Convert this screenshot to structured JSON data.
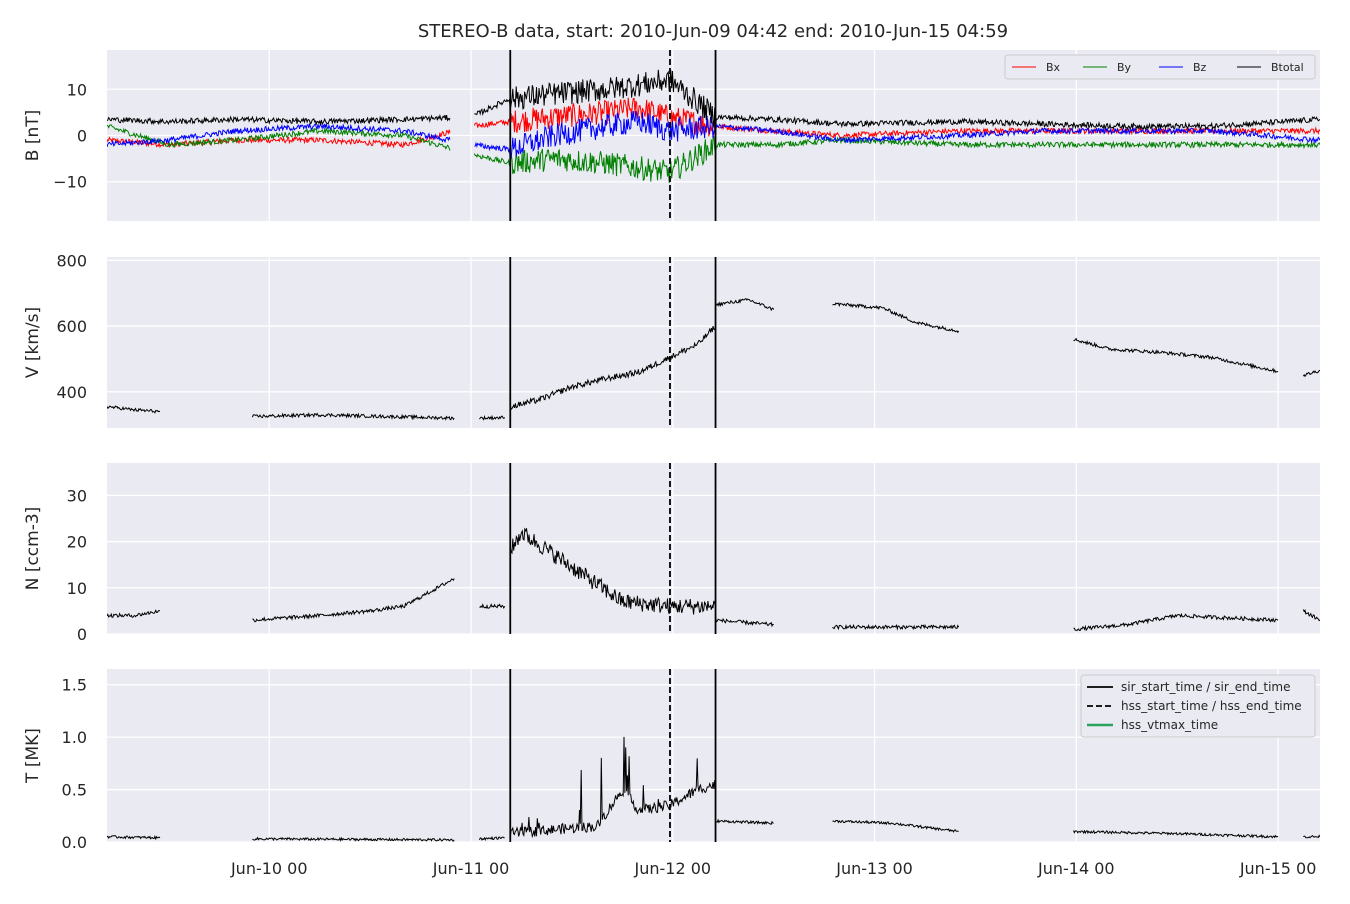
{
  "figure": {
    "title": "STEREO-B data, start: 2010-Jun-09 04:42  end: 2010-Jun-15 04:59",
    "background": "#eaeaf2",
    "grid_color": "#ffffff",
    "x_tick_labels": [
      "Jun-10 00",
      "Jun-11 00",
      "Jun-12 00",
      "Jun-13 00",
      "Jun-14 00",
      "Jun-15 00"
    ]
  },
  "events": {
    "sir_start_time": "2010-06-11 04:40",
    "hss_start_time": "2010-06-11 23:40",
    "sir_end_time": "2010-06-12 05:05"
  },
  "chart_data": [
    {
      "type": "line",
      "panel": "B",
      "ylabel": "B [nT]",
      "ylim": [
        -18.5,
        18.5
      ],
      "yticks": [
        -10,
        0,
        10
      ],
      "ytick_labels": [
        "−10",
        "0",
        "10"
      ],
      "xlim": [
        "2010-06-09 04:42",
        "2010-06-15 04:59"
      ],
      "grid": true,
      "legend_position": "top-right",
      "x": [
        "2010-06-09 04:42",
        "2010-06-09 12:00",
        "2010-06-09 20:00",
        "2010-06-10 06:00",
        "2010-06-10 16:00",
        "2010-06-11 00:00",
        "2010-06-11 04:40",
        "2010-06-11 10:00",
        "2010-06-11 16:00",
        "2010-06-11 20:00",
        "2010-06-11 23:40",
        "2010-06-12 05:05",
        "2010-06-12 12:00",
        "2010-06-12 20:00",
        "2010-06-13 10:00",
        "2010-06-13 20:00",
        "2010-06-14 06:00",
        "2010-06-14 16:00",
        "2010-06-15 04:59"
      ],
      "series": [
        {
          "name": "Bx",
          "color": "#ff0000",
          "values": [
            -1,
            -2,
            -1,
            -1,
            -2,
            2,
            3,
            4,
            5,
            6,
            4,
            2,
            1,
            0,
            1,
            1,
            1,
            1,
            1
          ]
        },
        {
          "name": "By",
          "color": "#008000",
          "values": [
            2,
            -2,
            -1,
            1,
            0,
            -4,
            -6,
            -5,
            -6,
            -7,
            -8,
            -2,
            -2,
            -1,
            -2,
            -2,
            -2,
            -2,
            -2
          ]
        },
        {
          "name": "Bz",
          "color": "#0000ff",
          "values": [
            -2,
            -1,
            1,
            2,
            1,
            -2,
            -3,
            0,
            2,
            3,
            1,
            2,
            1,
            -1,
            0,
            1,
            1,
            1,
            -1
          ]
        },
        {
          "name": "Btotal",
          "color": "#000000",
          "values": [
            3.5,
            3,
            3.5,
            3,
            3.5,
            4,
            8,
            9,
            10,
            11,
            12,
            4,
            3.5,
            2.5,
            3,
            2.5,
            2,
            2,
            3.5
          ]
        }
      ]
    },
    {
      "type": "line",
      "panel": "V",
      "ylabel": "V [km/s]",
      "ylim": [
        290,
        810
      ],
      "yticks": [
        400,
        600,
        800
      ],
      "ytick_labels": [
        "400",
        "600",
        "800"
      ],
      "grid": true,
      "series": [
        {
          "name": "",
          "color": "#000000",
          "x": [
            "2010-06-09 04:42",
            "2010-06-09 08:00",
            "2010-06-09 11:00"
          ],
          "values": [
            355,
            345,
            340
          ]
        },
        {
          "name": "",
          "color": "#000000",
          "x": [
            "2010-06-09 22:00",
            "2010-06-10 06:00",
            "2010-06-10 14:00",
            "2010-06-10 22:00"
          ],
          "values": [
            325,
            330,
            325,
            320
          ]
        },
        {
          "name": "",
          "color": "#000000",
          "x": [
            "2010-06-11 01:00",
            "2010-06-11 04:00"
          ],
          "values": [
            320,
            322
          ]
        },
        {
          "name": "",
          "color": "#000000",
          "x": [
            "2010-06-11 04:40",
            "2010-06-11 08:00",
            "2010-06-11 12:00",
            "2010-06-11 16:00",
            "2010-06-11 20:00",
            "2010-06-11 23:40",
            "2010-06-12 03:00",
            "2010-06-12 05:05"
          ],
          "values": [
            355,
            375,
            415,
            440,
            460,
            505,
            545,
            600
          ]
        },
        {
          "name": "",
          "color": "#000000",
          "x": [
            "2010-06-12 05:05",
            "2010-06-12 09:00",
            "2010-06-12 12:00"
          ],
          "values": [
            665,
            680,
            650
          ]
        },
        {
          "name": "",
          "color": "#000000",
          "x": [
            "2010-06-12 19:00",
            "2010-06-13 01:00",
            "2010-06-13 05:00",
            "2010-06-13 10:00"
          ],
          "values": [
            668,
            655,
            610,
            585
          ]
        },
        {
          "name": "",
          "color": "#000000",
          "x": [
            "2010-06-13 23:40",
            "2010-06-14 04:00",
            "2010-06-14 10:00",
            "2010-06-14 16:00",
            "2010-06-15 00:00"
          ],
          "values": [
            560,
            530,
            520,
            505,
            462
          ]
        },
        {
          "name": "",
          "color": "#000000",
          "x": [
            "2010-06-15 03:00",
            "2010-06-15 04:59"
          ],
          "values": [
            450,
            465
          ]
        }
      ]
    },
    {
      "type": "line",
      "panel": "N",
      "ylabel": "N [ccm-3]",
      "ylim": [
        0,
        37
      ],
      "yticks": [
        0,
        10,
        20,
        30
      ],
      "ytick_labels": [
        "0",
        "10",
        "20",
        "30"
      ],
      "grid": true,
      "series": [
        {
          "name": "",
          "color": "#000000",
          "x": [
            "2010-06-09 04:42",
            "2010-06-09 08:00",
            "2010-06-09 11:00"
          ],
          "values": [
            4,
            4,
            5
          ]
        },
        {
          "name": "",
          "color": "#000000",
          "x": [
            "2010-06-09 22:00",
            "2010-06-10 06:00",
            "2010-06-10 12:00",
            "2010-06-10 16:00",
            "2010-06-10 20:00",
            "2010-06-10 22:00"
          ],
          "values": [
            3,
            4,
            5,
            6,
            10,
            12
          ]
        },
        {
          "name": "",
          "color": "#000000",
          "x": [
            "2010-06-11 01:00",
            "2010-06-11 04:00"
          ],
          "values": [
            6,
            6
          ]
        },
        {
          "name": "",
          "color": "#000000",
          "x": [
            "2010-06-11 04:40",
            "2010-06-11 06:00",
            "2010-06-11 10:00",
            "2010-06-11 14:00",
            "2010-06-11 18:00",
            "2010-06-11 23:40",
            "2010-06-12 05:05"
          ],
          "values": [
            18,
            22,
            17,
            12,
            7,
            6,
            6
          ]
        },
        {
          "name": "",
          "color": "#000000",
          "x": [
            "2010-06-12 05:05",
            "2010-06-12 12:00"
          ],
          "values": [
            3,
            2
          ]
        },
        {
          "name": "",
          "color": "#000000",
          "x": [
            "2010-06-12 19:00",
            "2010-06-13 10:00"
          ],
          "values": [
            1.5,
            1.5
          ]
        },
        {
          "name": "",
          "color": "#000000",
          "x": [
            "2010-06-13 23:40",
            "2010-06-14 06:00",
            "2010-06-14 12:00",
            "2010-06-15 00:00"
          ],
          "values": [
            1,
            2,
            4,
            3
          ]
        },
        {
          "name": "",
          "color": "#000000",
          "x": [
            "2010-06-15 03:00",
            "2010-06-15 04:59"
          ],
          "values": [
            5,
            3
          ]
        }
      ]
    },
    {
      "type": "line",
      "panel": "T",
      "ylabel": "T [MK]",
      "ylim": [
        0,
        1.65
      ],
      "yticks": [
        0.0,
        0.5,
        1.0,
        1.5
      ],
      "ytick_labels": [
        "0.0",
        "0.5",
        "1.0",
        "1.5"
      ],
      "grid": true,
      "legend_position": "top-right",
      "legend_entries": [
        {
          "label": "sir_start_time / sir_end_time",
          "color": "#000000",
          "style": "solid"
        },
        {
          "label": "hss_start_time / hss_end_time",
          "color": "#000000",
          "style": "dashed"
        },
        {
          "label": "hss_vtmax_time",
          "color": "#2ca25f",
          "style": "solid"
        }
      ],
      "series": [
        {
          "name": "",
          "color": "#000000",
          "x": [
            "2010-06-09 04:42",
            "2010-06-09 11:00"
          ],
          "values": [
            0.05,
            0.04
          ]
        },
        {
          "name": "",
          "color": "#000000",
          "x": [
            "2010-06-09 22:00",
            "2010-06-10 22:00"
          ],
          "values": [
            0.03,
            0.02
          ]
        },
        {
          "name": "",
          "color": "#000000",
          "x": [
            "2010-06-11 01:00",
            "2010-06-11 04:00"
          ],
          "values": [
            0.03,
            0.04
          ]
        },
        {
          "name": "",
          "color": "#000000",
          "x": [
            "2010-06-11 04:40",
            "2010-06-11 10:00",
            "2010-06-11 15:00",
            "2010-06-11 18:00",
            "2010-06-11 20:00",
            "2010-06-11 23:40",
            "2010-06-12 03:00",
            "2010-06-12 05:05"
          ],
          "values": [
            0.08,
            0.12,
            0.15,
            0.5,
            0.3,
            0.35,
            0.5,
            0.55
          ]
        },
        {
          "name": "",
          "color": "#000000",
          "x": [
            "2010-06-12 05:05",
            "2010-06-12 12:00"
          ],
          "values": [
            0.2,
            0.18
          ]
        },
        {
          "name": "",
          "color": "#000000",
          "x": [
            "2010-06-12 19:00",
            "2010-06-13 02:00",
            "2010-06-13 10:00"
          ],
          "values": [
            0.2,
            0.18,
            0.1
          ]
        },
        {
          "name": "",
          "color": "#000000",
          "x": [
            "2010-06-13 23:40",
            "2010-06-14 12:00",
            "2010-06-15 00:00"
          ],
          "values": [
            0.1,
            0.08,
            0.05
          ]
        },
        {
          "name": "",
          "color": "#000000",
          "x": [
            "2010-06-15 03:00",
            "2010-06-15 04:59"
          ],
          "values": [
            0.05,
            0.05
          ]
        }
      ]
    }
  ]
}
